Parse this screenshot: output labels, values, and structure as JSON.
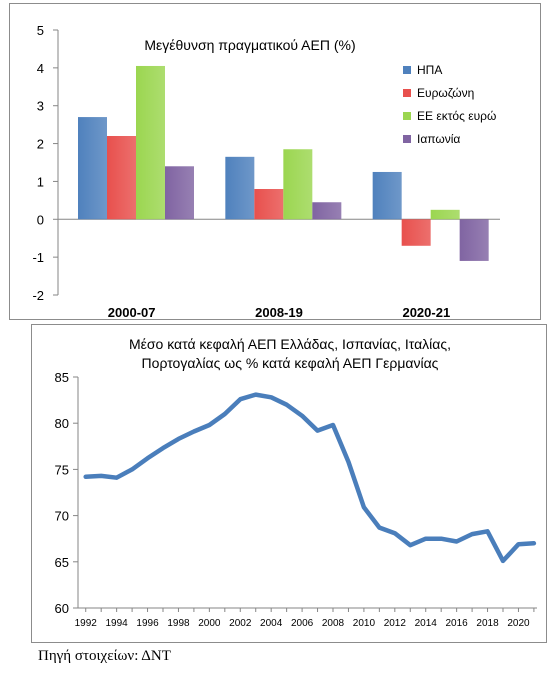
{
  "chart_data": [
    {
      "type": "bar",
      "title": "Μεγέθυνση πραγματικού ΑΕΠ (%)",
      "categories": [
        "2000-07",
        "2008-19",
        "2020-21"
      ],
      "series": [
        {
          "name": "ΗΠΑ",
          "values": [
            2.7,
            1.65,
            1.25
          ]
        },
        {
          "name": "Ευρωζώνη",
          "values": [
            2.2,
            0.8,
            -0.7
          ]
        },
        {
          "name": "ΕΕ εκτός ευρώ",
          "values": [
            4.05,
            1.85,
            0.25
          ]
        },
        {
          "name": "Ιαπωνία",
          "values": [
            1.4,
            0.45,
            -1.1
          ]
        }
      ],
      "colors": [
        "#4f81bd",
        "#e8504d",
        "#9bd650",
        "#8064a2"
      ],
      "ylim": [
        -2,
        5
      ],
      "yticks": [
        "5",
        "4",
        "3",
        "2",
        "1",
        "0",
        "-1",
        "-2"
      ],
      "legend": "right",
      "grid": false
    },
    {
      "type": "line",
      "title_lines": [
        "Μέσο κατά κεφαλή ΑΕΠ Ελλάδας, Ισπανίας, Ιταλίας,",
        "Πορτογαλίας ως % κατά κεφαλή ΑΕΠ Γερμανίας"
      ],
      "x": [
        1992,
        1993,
        1994,
        1995,
        1996,
        1997,
        1998,
        1999,
        2000,
        2001,
        2002,
        2003,
        2004,
        2005,
        2006,
        2007,
        2008,
        2009,
        2010,
        2011,
        2012,
        2013,
        2014,
        2015,
        2016,
        2017,
        2018,
        2019,
        2020,
        2021
      ],
      "y": [
        74.2,
        74.3,
        74.1,
        75.0,
        76.2,
        77.3,
        78.3,
        79.1,
        79.8,
        81.0,
        82.6,
        83.1,
        82.8,
        82.0,
        80.8,
        79.2,
        79.8,
        75.8,
        70.9,
        68.7,
        68.1,
        66.8,
        67.5,
        67.5,
        67.2,
        68.0,
        68.3,
        65.1,
        66.9,
        67.0
      ],
      "xticks": [
        "1992",
        "1994",
        "1996",
        "1998",
        "2000",
        "2002",
        "2004",
        "2006",
        "2008",
        "2010",
        "2012",
        "2014",
        "2016",
        "2018",
        "2020"
      ],
      "yticks": [
        "85",
        "80",
        "75",
        "70",
        "65",
        "60"
      ],
      "ylim": [
        60,
        85
      ],
      "xlim": [
        1991.5,
        2021.2
      ],
      "color": "#4a7ebb",
      "grid": false
    }
  ],
  "source": "Πηγή στοιχείων: ΔΝΤ"
}
